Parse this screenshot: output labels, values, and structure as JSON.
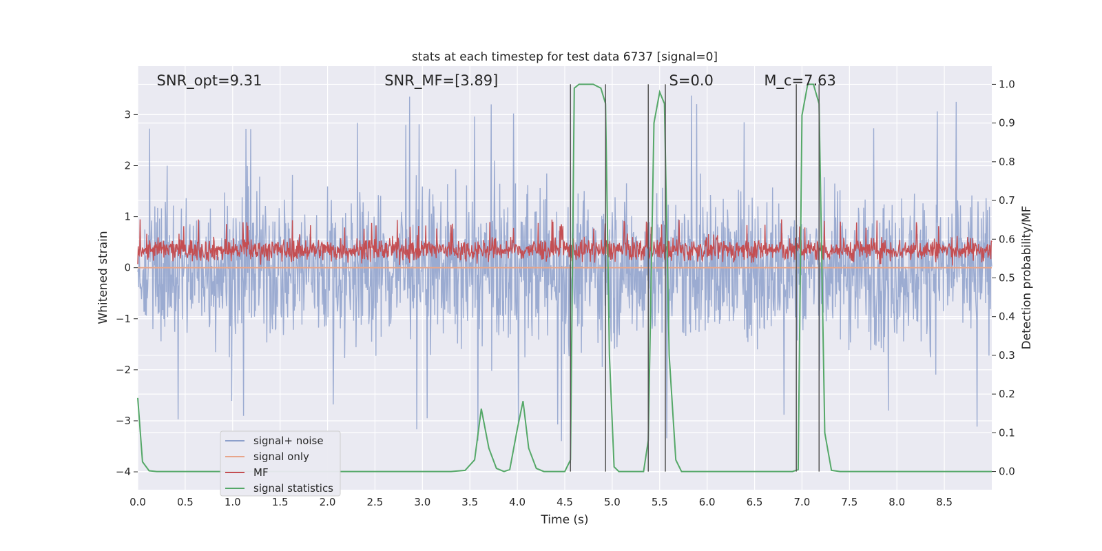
{
  "chart_data": {
    "type": "line",
    "title": "stats at each timestep for test data 6737 [signal=0]",
    "xlabel": "Time (s)",
    "ylabel_left": "Whitened strain",
    "ylabel_right": "Detection probability/MF",
    "xlim": [
      0,
      9
    ],
    "ylim_left": [
      -4.35,
      3.95
    ],
    "ylim_right": [
      -0.047,
      1.047
    ],
    "x_ticks": [
      0,
      0.5,
      1,
      1.5,
      2,
      2.5,
      3,
      3.5,
      4,
      4.5,
      5,
      5.5,
      6,
      6.5,
      7,
      7.5,
      8,
      8.5
    ],
    "x_tick_labels": [
      "0.0",
      "0.5",
      "1.0",
      "1.5",
      "2.0",
      "2.5",
      "3.0",
      "3.5",
      "4.0",
      "4.5",
      "5.0",
      "5.5",
      "6.0",
      "6.5",
      "7.0",
      "7.5",
      "8.0",
      "8.5"
    ],
    "y_left_ticks": [
      -4,
      -3,
      -2,
      -1,
      0,
      1,
      2,
      3
    ],
    "y_left_tick_labels": [
      "−4",
      "−3",
      "−2",
      "−1",
      "0",
      "1",
      "2",
      "3"
    ],
    "y_right_ticks": [
      0,
      0.1,
      0.2,
      0.3,
      0.4,
      0.5,
      0.6,
      0.7,
      0.8,
      0.9,
      1.0
    ],
    "y_right_tick_labels": [
      "0.0",
      "0.1",
      "0.2",
      "0.3",
      "0.4",
      "0.5",
      "0.6",
      "0.7",
      "0.8",
      "0.9",
      "1.0"
    ],
    "grid": true,
    "legend_position": "lower-left",
    "annotations": [
      {
        "text": "SNR_opt=9.31",
        "x": 0.2
      },
      {
        "text": "SNR_MF=[3.89]",
        "x": 2.6
      },
      {
        "text": "S=0.0",
        "x": 5.6
      },
      {
        "text": "M_c=7.63",
        "x": 6.6
      }
    ],
    "series": [
      {
        "name": "signal+ noise",
        "axis": "left",
        "color": "#8da0cb",
        "style": "noise",
        "amplitude_range": [
          -2.0,
          2.4
        ],
        "peak_min": -3.4,
        "peak_max": 3.5
      },
      {
        "name": "signal only",
        "axis": "left",
        "color": "#e8a58a",
        "style": "flat",
        "value": 0.0
      },
      {
        "name": "MF",
        "axis": "left",
        "color": "#c44e52",
        "style": "noise",
        "amplitude_range": [
          0.0,
          0.95
        ],
        "mean": 0.35
      },
      {
        "name": "signal statistics",
        "axis": "right",
        "color": "#55a868",
        "x": [
          0.0,
          0.05,
          0.12,
          0.2,
          0.3,
          0.5,
          1.0,
          1.5,
          2.0,
          2.5,
          3.0,
          3.3,
          3.45,
          3.55,
          3.62,
          3.7,
          3.78,
          3.86,
          3.92,
          4.0,
          4.06,
          4.12,
          4.2,
          4.28,
          4.4,
          4.5,
          4.56,
          4.6,
          4.65,
          4.7,
          4.8,
          4.88,
          4.93,
          4.97,
          5.02,
          5.07,
          5.15,
          5.25,
          5.33,
          5.38,
          5.44,
          5.5,
          5.55,
          5.6,
          5.67,
          5.73,
          5.8,
          6.0,
          6.5,
          6.9,
          6.96,
          7.0,
          7.06,
          7.12,
          7.18,
          7.24,
          7.31,
          7.4,
          8.0,
          8.5,
          9.0
        ],
        "y": [
          0.19,
          0.025,
          0.002,
          0.0,
          0.0,
          0.0,
          0.0,
          0.0,
          0.0,
          0.0,
          0.0,
          0.0,
          0.003,
          0.03,
          0.162,
          0.06,
          0.008,
          0.0,
          0.005,
          0.11,
          0.182,
          0.06,
          0.008,
          0.0,
          0.0,
          0.0,
          0.03,
          0.99,
          1.0,
          1.0,
          1.0,
          0.99,
          0.95,
          0.3,
          0.012,
          0.0,
          0.0,
          0.0,
          0.0,
          0.08,
          0.9,
          0.98,
          0.95,
          0.3,
          0.03,
          0.0,
          0.0,
          0.0,
          0.0,
          0.0,
          0.005,
          0.92,
          1.0,
          1.0,
          0.95,
          0.1,
          0.003,
          0.0,
          0.0,
          0.0,
          0.0
        ]
      }
    ],
    "vertical_markers": [
      4.56,
      4.93,
      5.38,
      5.56,
      6.94,
      7.18
    ]
  }
}
